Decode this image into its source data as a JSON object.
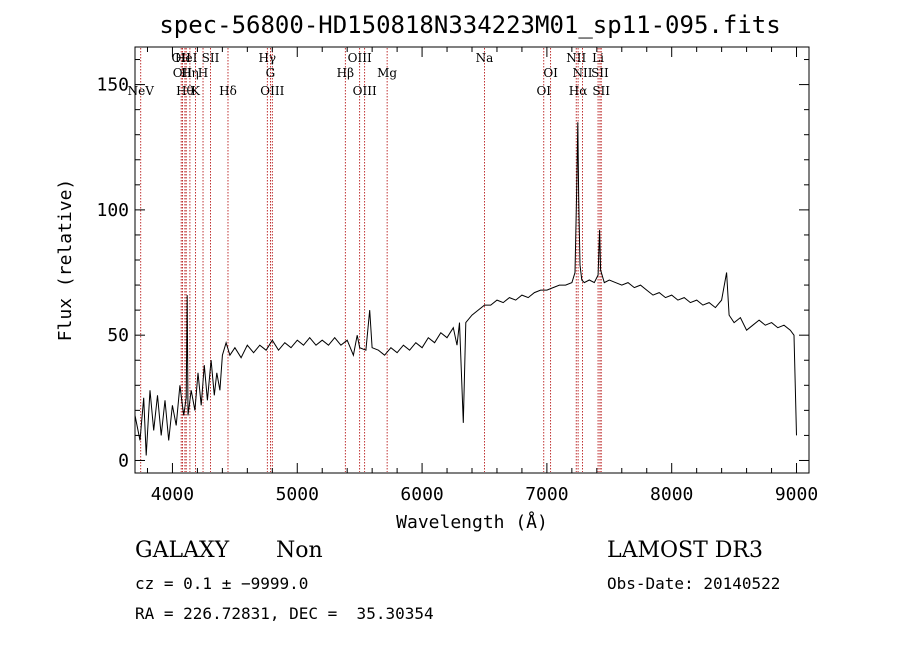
{
  "chart_data": {
    "type": "line",
    "title": "spec-56800-HD150818N334223M01_sp11-095.fits",
    "xlabel": "Wavelength (Å)",
    "ylabel": "Flux (relative)",
    "xlim": [
      3700,
      9100
    ],
    "ylim": [
      -5,
      165
    ],
    "x_ticks": [
      "4000",
      "5000",
      "6000",
      "7000",
      "8000",
      "9000"
    ],
    "y_ticks": [
      "0",
      "50",
      "100",
      "150"
    ],
    "line_color": "#000000",
    "marker_color": "#b00000",
    "series": [
      {
        "name": "spectrum",
        "points": [
          [
            3700,
            18
          ],
          [
            3740,
            8
          ],
          [
            3770,
            25
          ],
          [
            3790,
            2
          ],
          [
            3820,
            28
          ],
          [
            3850,
            12
          ],
          [
            3880,
            26
          ],
          [
            3910,
            10
          ],
          [
            3940,
            24
          ],
          [
            3970,
            8
          ],
          [
            4000,
            22
          ],
          [
            4030,
            14
          ],
          [
            4060,
            30
          ],
          [
            4090,
            18
          ],
          [
            4110,
            25
          ],
          [
            4118,
            66
          ],
          [
            4125,
            18
          ],
          [
            4150,
            28
          ],
          [
            4180,
            20
          ],
          [
            4205,
            35
          ],
          [
            4230,
            22
          ],
          [
            4255,
            38
          ],
          [
            4280,
            24
          ],
          [
            4310,
            40
          ],
          [
            4335,
            26
          ],
          [
            4355,
            35
          ],
          [
            4380,
            28
          ],
          [
            4400,
            42
          ],
          [
            4430,
            47
          ],
          [
            4460,
            42
          ],
          [
            4500,
            45
          ],
          [
            4550,
            41
          ],
          [
            4600,
            46
          ],
          [
            4650,
            43
          ],
          [
            4700,
            46
          ],
          [
            4750,
            44
          ],
          [
            4800,
            48
          ],
          [
            4850,
            44
          ],
          [
            4900,
            47
          ],
          [
            4950,
            45
          ],
          [
            5000,
            48
          ],
          [
            5050,
            46
          ],
          [
            5100,
            49
          ],
          [
            5150,
            46
          ],
          [
            5200,
            48
          ],
          [
            5250,
            46
          ],
          [
            5300,
            49
          ],
          [
            5350,
            46
          ],
          [
            5400,
            48
          ],
          [
            5450,
            42
          ],
          [
            5480,
            50
          ],
          [
            5500,
            45
          ],
          [
            5550,
            44
          ],
          [
            5580,
            60
          ],
          [
            5600,
            45
          ],
          [
            5650,
            44
          ],
          [
            5700,
            42
          ],
          [
            5750,
            45
          ],
          [
            5800,
            43
          ],
          [
            5850,
            46
          ],
          [
            5900,
            44
          ],
          [
            5950,
            47
          ],
          [
            6000,
            45
          ],
          [
            6050,
            49
          ],
          [
            6100,
            47
          ],
          [
            6150,
            51
          ],
          [
            6200,
            49
          ],
          [
            6250,
            53
          ],
          [
            6280,
            46
          ],
          [
            6300,
            55
          ],
          [
            6330,
            15
          ],
          [
            6350,
            55
          ],
          [
            6400,
            58
          ],
          [
            6450,
            60
          ],
          [
            6500,
            62
          ],
          [
            6550,
            62
          ],
          [
            6600,
            64
          ],
          [
            6650,
            63
          ],
          [
            6700,
            65
          ],
          [
            6750,
            64
          ],
          [
            6800,
            66
          ],
          [
            6850,
            65
          ],
          [
            6900,
            67
          ],
          [
            6950,
            68
          ],
          [
            7000,
            68
          ],
          [
            7050,
            69
          ],
          [
            7100,
            70
          ],
          [
            7150,
            70
          ],
          [
            7200,
            71
          ],
          [
            7225,
            75
          ],
          [
            7240,
            110
          ],
          [
            7248,
            135
          ],
          [
            7255,
            105
          ],
          [
            7265,
            78
          ],
          [
            7280,
            72
          ],
          [
            7300,
            71
          ],
          [
            7340,
            72
          ],
          [
            7380,
            71
          ],
          [
            7410,
            74
          ],
          [
            7422,
            92
          ],
          [
            7430,
            76
          ],
          [
            7460,
            71
          ],
          [
            7500,
            72
          ],
          [
            7550,
            71
          ],
          [
            7600,
            70
          ],
          [
            7650,
            71
          ],
          [
            7700,
            69
          ],
          [
            7750,
            70
          ],
          [
            7800,
            68
          ],
          [
            7850,
            66
          ],
          [
            7900,
            67
          ],
          [
            7950,
            65
          ],
          [
            8000,
            66
          ],
          [
            8050,
            64
          ],
          [
            8100,
            65
          ],
          [
            8150,
            63
          ],
          [
            8200,
            64
          ],
          [
            8250,
            62
          ],
          [
            8300,
            63
          ],
          [
            8350,
            61
          ],
          [
            8400,
            64
          ],
          [
            8440,
            75
          ],
          [
            8460,
            58
          ],
          [
            8500,
            55
          ],
          [
            8550,
            57
          ],
          [
            8600,
            52
          ],
          [
            8650,
            54
          ],
          [
            8700,
            56
          ],
          [
            8750,
            54
          ],
          [
            8800,
            55
          ],
          [
            8850,
            53
          ],
          [
            8900,
            54
          ],
          [
            8950,
            52
          ],
          [
            8980,
            50
          ],
          [
            9000,
            10
          ]
        ]
      }
    ],
    "line_markers": [
      {
        "wl": 3746,
        "label": "NeV",
        "row": 3
      },
      {
        "wl": 4070,
        "label": "OII",
        "row": 1
      },
      {
        "wl": 4080,
        "label": "OII",
        "row": 2
      },
      {
        "wl": 4100,
        "label": "Hθ",
        "row": 3
      },
      {
        "wl": 4110,
        "label": "HeI",
        "row": 1
      },
      {
        "wl": 4140,
        "label": "Hη",
        "row": 2
      },
      {
        "wl": 4185,
        "label": "K",
        "row": 3
      },
      {
        "wl": 4245,
        "label": "H",
        "row": 2
      },
      {
        "wl": 4305,
        "label": "SII",
        "row": 1
      },
      {
        "wl": 4445,
        "label": "Hδ",
        "row": 3
      },
      {
        "wl": 4760,
        "label": "Hγ",
        "row": 1
      },
      {
        "wl": 4785,
        "label": "G",
        "row": 2
      },
      {
        "wl": 4800,
        "label": "OIII",
        "row": 3
      },
      {
        "wl": 5385,
        "label": "Hβ",
        "row": 2
      },
      {
        "wl": 5500,
        "label": "OIII",
        "row": 1
      },
      {
        "wl": 5540,
        "label": "OIII",
        "row": 3
      },
      {
        "wl": 5720,
        "label": "Mg",
        "row": 2
      },
      {
        "wl": 6500,
        "label": "Na",
        "row": 1
      },
      {
        "wl": 6975,
        "label": "OI",
        "row": 3
      },
      {
        "wl": 7030,
        "label": "OI",
        "row": 2
      },
      {
        "wl": 7235,
        "label": "NII",
        "row": 1
      },
      {
        "wl": 7250,
        "label": "Hα",
        "row": 3
      },
      {
        "wl": 7285,
        "label": "NII",
        "row": 2
      },
      {
        "wl": 7410,
        "label": "Li",
        "row": 1
      },
      {
        "wl": 7425,
        "label": "SII",
        "row": 2
      },
      {
        "wl": 7435,
        "label": "SII",
        "row": 3
      }
    ]
  },
  "info": {
    "object_class": "GALAXY",
    "subclass": "Non",
    "redshift": "cz = 0.1 ± −9999.0",
    "coords": "RA = 226.72831, DEC =  35.30354",
    "survey": "LAMOST DR3",
    "obs_date": "Obs-Date: 20140522"
  }
}
